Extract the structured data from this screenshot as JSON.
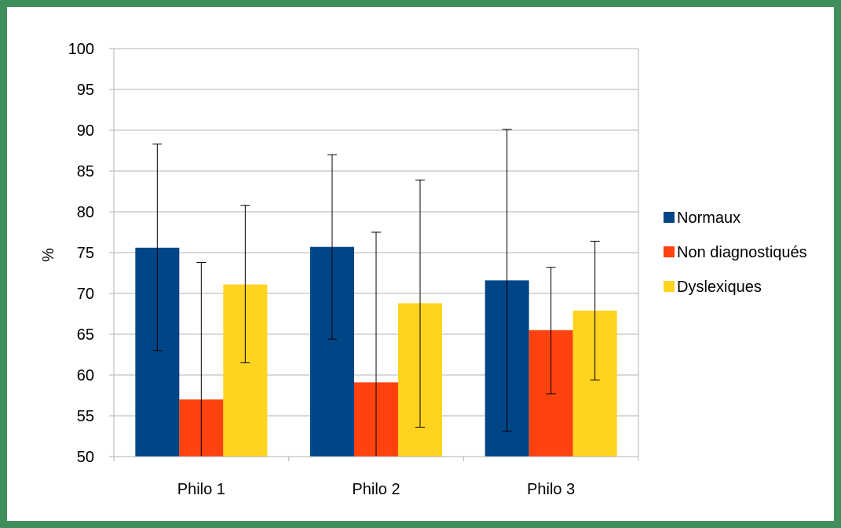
{
  "chart_data": {
    "type": "bar",
    "title": "",
    "xlabel": "",
    "ylabel": "%",
    "ylim": [
      50,
      100
    ],
    "ytick_step": 5,
    "yticks": [
      "50",
      "55",
      "60",
      "65",
      "70",
      "75",
      "80",
      "85",
      "90",
      "95",
      "100"
    ],
    "grid": true,
    "legend_position": "right",
    "categories": [
      "Philo 1",
      "Philo 2",
      "Philo 3"
    ],
    "series": [
      {
        "name": "Normaux",
        "color": "#004586",
        "values": [
          75.6,
          75.7,
          71.6
        ],
        "error_low": [
          63.0,
          64.4,
          53.1
        ],
        "error_high": [
          88.3,
          87.0,
          90.1
        ]
      },
      {
        "name": "Non diagnostiqués",
        "color": "#ff420e",
        "values": [
          57.0,
          59.1,
          65.5
        ],
        "error_low": [
          50.0,
          50.0,
          57.7
        ],
        "error_high": [
          73.8,
          77.5,
          73.2
        ]
      },
      {
        "name": "Dyslexiques",
        "color": "#ffd320",
        "values": [
          71.1,
          68.8,
          67.9
        ],
        "error_low": [
          61.5,
          53.6,
          59.4
        ],
        "error_high": [
          80.8,
          83.9,
          76.4
        ]
      }
    ]
  }
}
